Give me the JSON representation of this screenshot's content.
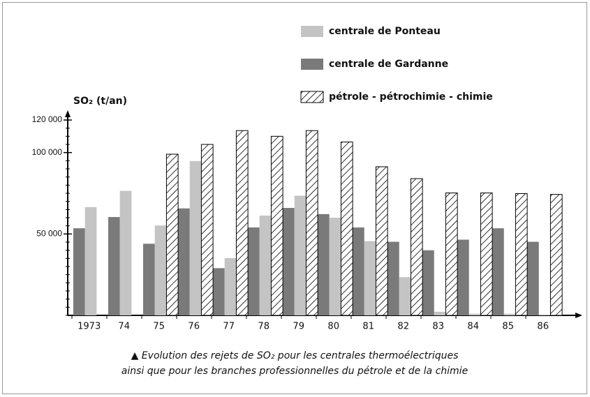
{
  "chart_data": {
    "type": "bar",
    "ylabel": "SO₂ (t/an)",
    "caption": [
      "▲ Evolution des rejets de SO₂ pour les centrales thermoélectriques",
      "ainsi que pour les branches professionnelles du pétrole et de la chimie"
    ],
    "categories": [
      "1973",
      "74",
      "75",
      "76",
      "77",
      "78",
      "79",
      "80",
      "81",
      "82",
      "83",
      "84",
      "85",
      "86"
    ],
    "series": [
      {
        "name": "centrale de Gardanne",
        "color": "#7a7a7a",
        "hatch": false,
        "values": [
          53500,
          60400,
          44000,
          65700,
          29000,
          54000,
          66000,
          62200,
          54000,
          45200,
          40000,
          46500,
          53500,
          45200
        ]
      },
      {
        "name": "centrale de Ponteau",
        "color": "#c4c4c4",
        "hatch": false,
        "values": [
          66500,
          76500,
          55200,
          94800,
          35200,
          61300,
          73500,
          60000,
          45600,
          23500,
          2200,
          1000,
          1000,
          500
        ]
      },
      {
        "name": "pétrole - pétrochimie - chimie",
        "color": "#000000",
        "hatch": true,
        "values": [
          null,
          null,
          99000,
          105000,
          113500,
          110000,
          113500,
          106500,
          91300,
          84000,
          75200,
          75200,
          74800,
          74300
        ]
      }
    ],
    "legend_order": [
      1,
      0,
      2
    ],
    "ylim": [
      0,
      120000
    ],
    "yticks": [
      {
        "value": 50000,
        "label": "50 000"
      },
      {
        "value": 100000,
        "label": "100 000"
      },
      {
        "value": 120000,
        "label": "120 000"
      }
    ]
  }
}
